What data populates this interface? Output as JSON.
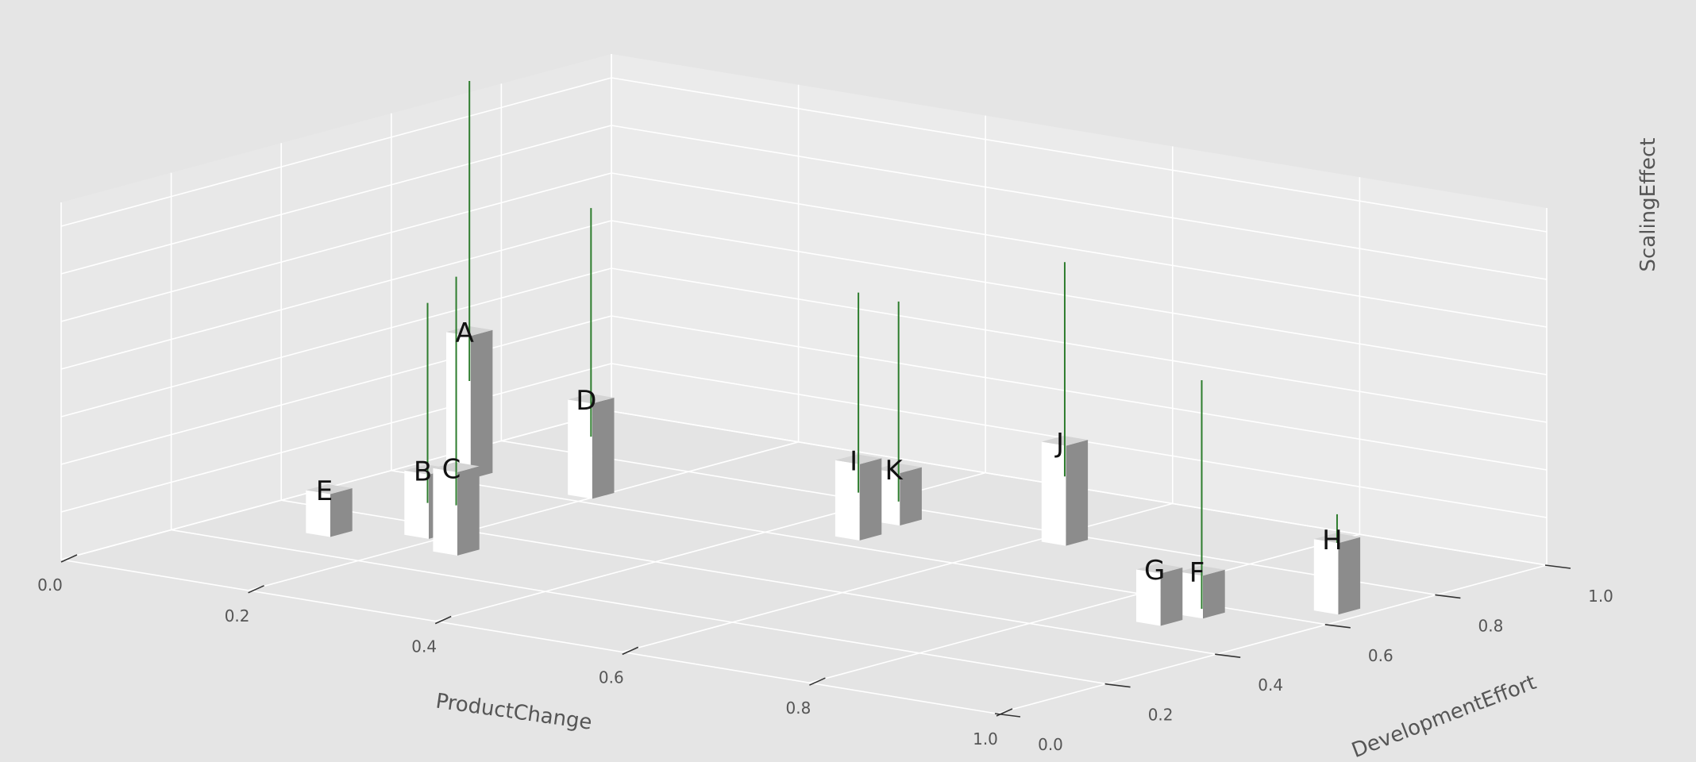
{
  "chart_data": {
    "type": "bar3d",
    "title": "",
    "xlabel": "ProductChange",
    "ylabel": "DevelopmentEffort",
    "zlabel": "ScalingEffect",
    "xlim": [
      0,
      1
    ],
    "ylim": [
      0,
      1
    ],
    "zlim": [
      0,
      1.5
    ],
    "x_ticks": [
      "0.0",
      "0.2",
      "0.4",
      "0.6",
      "0.8",
      "1.0"
    ],
    "y_ticks": [
      "0.0",
      "0.2",
      "0.4",
      "0.6",
      "0.8",
      "1.0"
    ],
    "z_ticks": [
      "0.0",
      "0.2",
      "0.4",
      "0.6",
      "0.8",
      "1.0",
      "1.2",
      "1.4"
    ],
    "grid": true,
    "points": [
      {
        "label": "A",
        "x": 0.06,
        "y": 0.64,
        "z": 0.6,
        "error": 1.05
      },
      {
        "label": "B",
        "x": 0.18,
        "y": 0.36,
        "z": 0.27,
        "error": 0.7
      },
      {
        "label": "C",
        "x": 0.24,
        "y": 0.31,
        "z": 0.35,
        "error": 0.8
      },
      {
        "label": "D",
        "x": 0.19,
        "y": 0.64,
        "z": 0.4,
        "error": 0.8
      },
      {
        "label": "E",
        "x": 0.11,
        "y": 0.3,
        "z": 0.18,
        "error": 0.0
      },
      {
        "label": "F",
        "x": 0.89,
        "y": 0.56,
        "z": 0.18,
        "error": 0.8
      },
      {
        "label": "G",
        "x": 0.88,
        "y": 0.5,
        "z": 0.22,
        "error": 0.0
      },
      {
        "label": "H",
        "x": 0.97,
        "y": 0.67,
        "z": 0.3,
        "error": 0.1
      },
      {
        "label": "I",
        "x": 0.47,
        "y": 0.65,
        "z": 0.32,
        "error": 0.7
      },
      {
        "label": "J",
        "x": 0.62,
        "y": 0.77,
        "z": 0.42,
        "error": 0.75
      },
      {
        "label": "K",
        "x": 0.46,
        "y": 0.74,
        "z": 0.22,
        "error": 0.7
      }
    ]
  },
  "colors": {
    "background": "#e5e5e5",
    "pane_back": "#ebebeb",
    "pane_side": "#e8e8e8",
    "pane_floor": "#e4e4e4",
    "grid": "#ffffff",
    "bar_front": "#ffffff",
    "bar_side": "#8c8c8c",
    "bar_top": "#d4d4d4",
    "error_line": "#2e7d2e",
    "text": "#555555"
  }
}
